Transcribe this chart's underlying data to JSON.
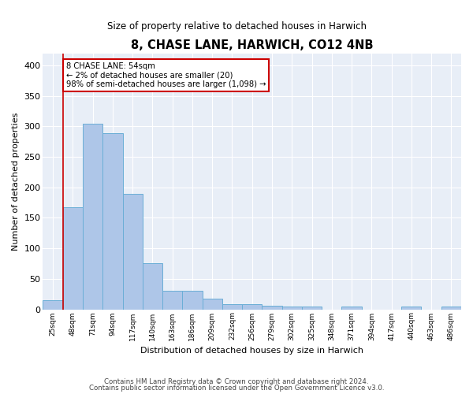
{
  "title": "8, CHASE LANE, HARWICH, CO12 4NB",
  "subtitle": "Size of property relative to detached houses in Harwich",
  "xlabel": "Distribution of detached houses by size in Harwich",
  "ylabel": "Number of detached properties",
  "categories": [
    "25sqm",
    "48sqm",
    "71sqm",
    "94sqm",
    "117sqm",
    "140sqm",
    "163sqm",
    "186sqm",
    "209sqm",
    "232sqm",
    "256sqm",
    "279sqm",
    "302sqm",
    "325sqm",
    "348sqm",
    "371sqm",
    "394sqm",
    "417sqm",
    "440sqm",
    "463sqm",
    "486sqm"
  ],
  "values": [
    15,
    168,
    305,
    289,
    190,
    76,
    31,
    31,
    18,
    9,
    9,
    6,
    5,
    5,
    0,
    5,
    0,
    0,
    4,
    0,
    4
  ],
  "bar_color": "#aec6e8",
  "bar_edge_color": "#6aaed6",
  "vline_color": "#cc0000",
  "vline_x_index": 1,
  "ylim": [
    0,
    420
  ],
  "yticks": [
    0,
    50,
    100,
    150,
    200,
    250,
    300,
    350,
    400
  ],
  "annotation_text": "8 CHASE LANE: 54sqm\n← 2% of detached houses are smaller (20)\n98% of semi-detached houses are larger (1,098) →",
  "annotation_box_color": "#ffffff",
  "annotation_border_color": "#cc0000",
  "plot_bg_color": "#e8eef7",
  "footer_line1": "Contains HM Land Registry data © Crown copyright and database right 2024.",
  "footer_line2": "Contains public sector information licensed under the Open Government Licence v3.0."
}
